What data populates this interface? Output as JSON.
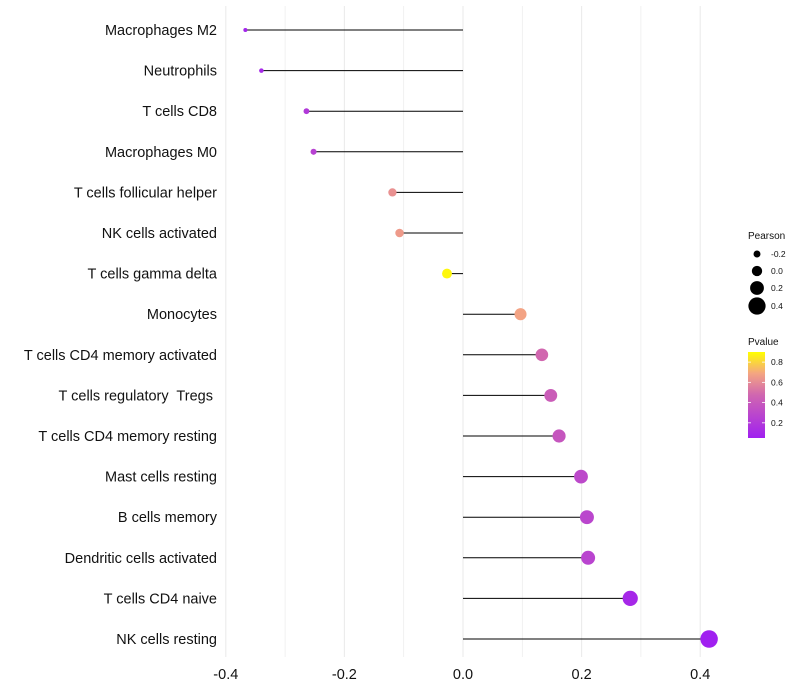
{
  "chart_data": {
    "type": "lollipop",
    "categories": [
      "Macrophages M2",
      "Neutrophils",
      "T cells CD8",
      "Macrophages M0",
      "T cells follicular helper",
      "NK cells activated",
      "T cells gamma delta",
      "Monocytes",
      "T cells CD4 memory activated",
      "T cells regulatory  Tregs ",
      "T cells CD4 memory resting",
      "Mast cells resting",
      "B cells memory",
      "Dendritic cells activated",
      "T cells CD4 naive",
      "NK cells resting"
    ],
    "pearson": [
      -0.367,
      -0.34,
      -0.264,
      -0.252,
      -0.119,
      -0.107,
      -0.027,
      0.097,
      0.133,
      0.148,
      0.162,
      0.199,
      0.209,
      0.211,
      0.282,
      0.415
    ],
    "pvalue": [
      0.08,
      0.1,
      0.2,
      0.25,
      0.62,
      0.65,
      0.88,
      0.68,
      0.48,
      0.42,
      0.38,
      0.3,
      0.28,
      0.27,
      0.1,
      0.05
    ],
    "xlim": [
      -0.4,
      0.45
    ],
    "xticks": [
      -0.4,
      -0.2,
      0.0,
      0.2,
      0.4
    ],
    "xtick_labels": [
      "-0.4",
      "-0.2",
      "0.0",
      "0.2",
      "0.4"
    ],
    "xlabel": "",
    "ylabel": "",
    "legend_size": {
      "title": "Pearson",
      "values": [
        -0.2,
        0.0,
        0.2,
        0.4
      ],
      "labels": [
        "-0.2",
        "0.0",
        "0.2",
        "0.4"
      ]
    },
    "legend_color": {
      "title": "Pvalue",
      "values": [
        0.2,
        0.4,
        0.6,
        0.8
      ],
      "labels": [
        "0.2",
        "0.4",
        "0.6",
        "0.8"
      ],
      "range": [
        0.05,
        0.9
      ]
    },
    "colors": {
      "low": "#A020F0",
      "mid": "#F4A582",
      "high": "#FFFF00",
      "stem": "#000000",
      "grid": "#EBEBEB"
    }
  }
}
